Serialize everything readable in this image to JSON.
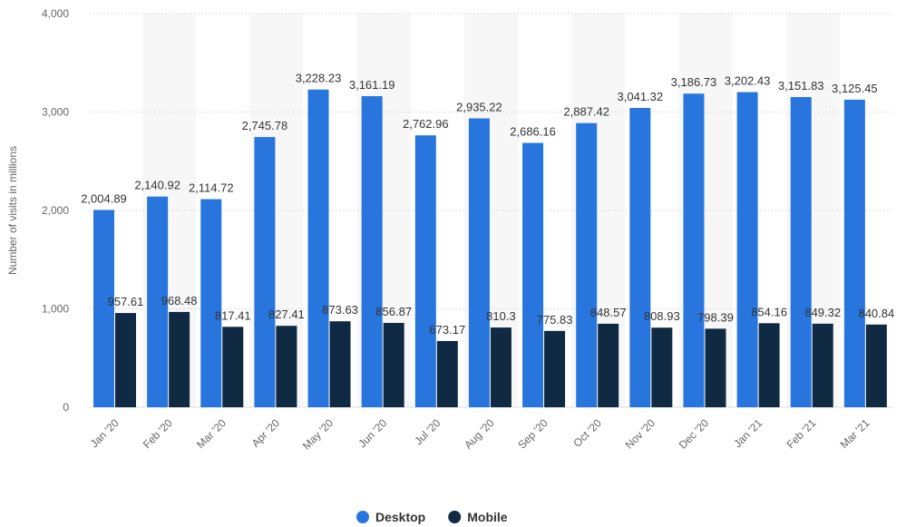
{
  "chart_data": {
    "type": "bar",
    "y_label": "Number of visits in millions",
    "categories": [
      "Jan '20",
      "Feb '20",
      "Mar '20",
      "Apr '20",
      "May '20",
      "Jun '20",
      "Jul '20",
      "Aug '20",
      "Sep '20",
      "Oct '20",
      "Nov '20",
      "Dec '20",
      "Jan '21",
      "Feb '21",
      "Mar '21"
    ],
    "series": [
      {
        "name": "Desktop",
        "color": "#2876dd",
        "values": [
          2004.89,
          2140.92,
          2114.72,
          2745.78,
          3228.23,
          3161.19,
          2762.96,
          2935.22,
          2686.16,
          2887.42,
          3041.32,
          3186.73,
          3202.43,
          3151.83,
          3125.45
        ],
        "value_labels": [
          "2,004.89",
          "2,140.92",
          "2,114.72",
          "2,745.78",
          "3,228.23",
          "3,161.19",
          "2,762.96",
          "2,935.22",
          "2,686.16",
          "2,887.42",
          "3,041.32",
          "3,186.73",
          "3,202.43",
          "3,151.83",
          "3,125.45"
        ]
      },
      {
        "name": "Mobile",
        "color": "#0f2a42",
        "values": [
          957.61,
          968.48,
          817.41,
          827.41,
          873.63,
          856.87,
          673.17,
          810.3,
          775.83,
          848.57,
          808.93,
          798.39,
          854.16,
          849.32,
          840.84
        ]
      }
    ],
    "ylim": [
      0,
      4000
    ],
    "yticks": [
      0,
      {
        "value": 1000,
        "label": "1,000"
      },
      {
        "value": 2000,
        "label": "2,000"
      },
      {
        "value": 3000,
        "label": "3,000"
      },
      {
        "value": 4000,
        "label": "4,000"
      }
    ],
    "grid": true,
    "legend": "bottom"
  }
}
